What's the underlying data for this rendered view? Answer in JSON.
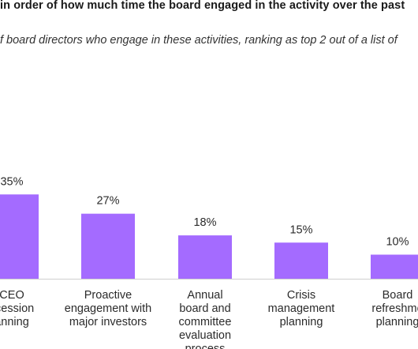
{
  "title": "in order of how much time the board engaged in the activity over the past",
  "subtitle": "f board directors who engage in these activities, ranking as top 2 out of a list of",
  "colors": {
    "bar": "#a46bff",
    "axis": "#cfcfcf"
  },
  "chart_data": {
    "type": "bar",
    "title": "in order of how much time the board engaged in the activity over the past",
    "subtitle": "f board directors who engage in these activities, ranking as top 2 out of a list of",
    "categories": [
      "CEO succession planning",
      "Proactive engagement with major investors",
      "Annual board and committee evaluation process",
      "Crisis management planning",
      "Board refreshment planning"
    ],
    "category_lines": [
      [
        "CEO",
        "ccession",
        "anning"
      ],
      [
        "Proactive",
        "engagement with",
        "major investors"
      ],
      [
        "Annual",
        "board and",
        "committee",
        "evaluation",
        "process"
      ],
      [
        "Crisis",
        "management",
        "planning"
      ],
      [
        "Board",
        "refreshme",
        "planning"
      ]
    ],
    "values": [
      35,
      27,
      18,
      15,
      10
    ],
    "value_labels": [
      "35%",
      "27%",
      "18%",
      "15%",
      "10%"
    ],
    "ylim": [
      0,
      40
    ],
    "grid": false,
    "legend": "none"
  }
}
